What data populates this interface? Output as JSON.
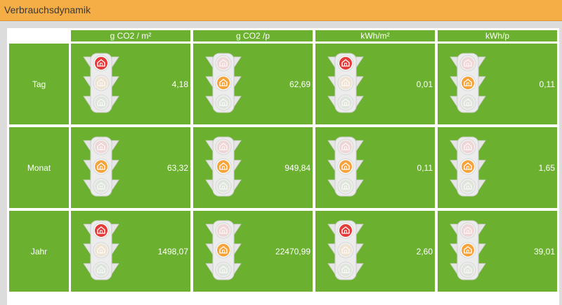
{
  "header": {
    "title": "Verbrauchsdynamik"
  },
  "table": {
    "columns": [
      "g CO2 / m²",
      "g CO2 /p",
      "kWh/m²",
      "kWh/p"
    ],
    "rows": [
      {
        "label": "Tag",
        "cells": [
          {
            "value": "4,18",
            "light": "red-icon"
          },
          {
            "value": "62,69",
            "light": "yellow-icon"
          },
          {
            "value": "0,01",
            "light": "red-icon"
          },
          {
            "value": "0,11",
            "light": "yellow-icon"
          }
        ]
      },
      {
        "label": "Monat",
        "cells": [
          {
            "value": "63,32",
            "light": "yellow-icon"
          },
          {
            "value": "949,84",
            "light": "yellow-icon"
          },
          {
            "value": "0,11",
            "light": "yellow-icon"
          },
          {
            "value": "1,65",
            "light": "yellow-icon"
          }
        ]
      },
      {
        "label": "Jahr",
        "cells": [
          {
            "value": "1498,07",
            "light": "red-icon"
          },
          {
            "value": "22470,99",
            "light": "yellow-icon"
          },
          {
            "value": "2,60",
            "light": "red-icon"
          },
          {
            "value": "39,01",
            "light": "yellow-icon"
          }
        ]
      }
    ]
  },
  "colors": {
    "header_bg": "#f4ae45",
    "cell_bg": "#6bb02f",
    "red_on": "#e53a3a",
    "yellow_on": "#f5a33a",
    "lamp_off_red": "#efd6d6",
    "lamp_off_yellow": "#efe3d3",
    "lamp_off_green": "#dfe5dc"
  }
}
